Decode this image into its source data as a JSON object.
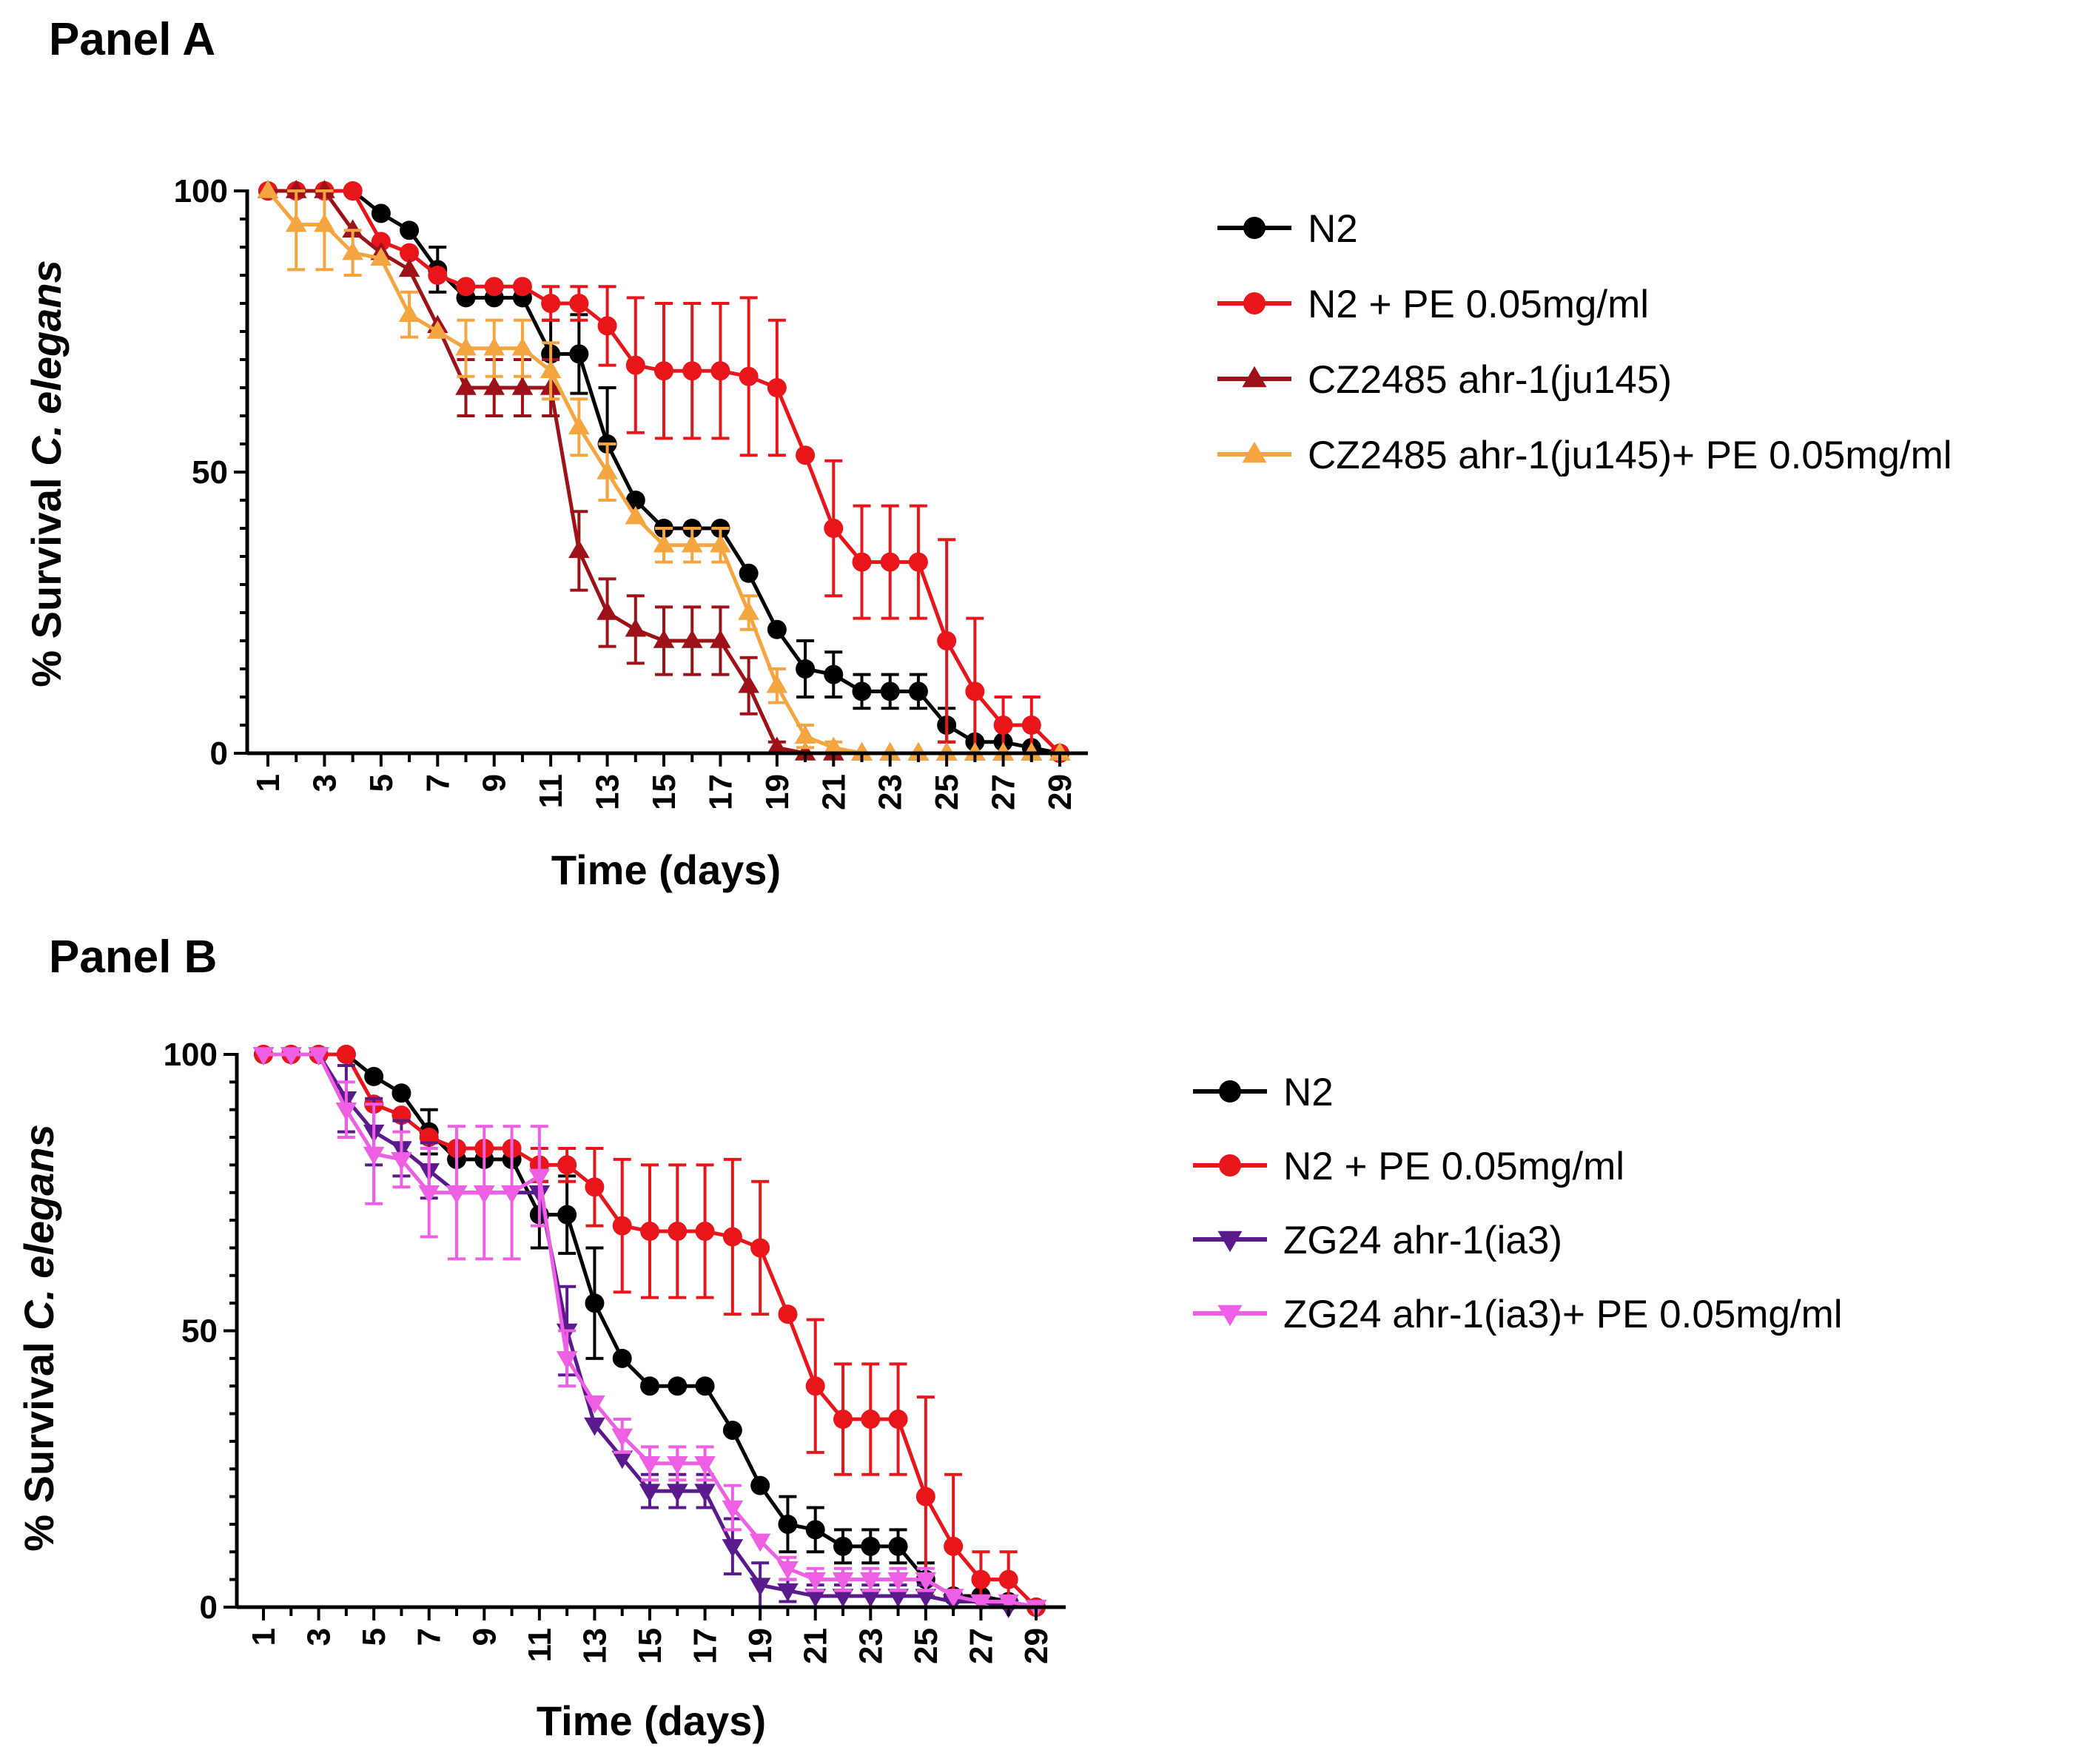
{
  "chart_data": [
    {
      "type": "line",
      "panel_title": "Panel A",
      "xlabel": "Time (days)",
      "ylabel_prefix": "% Survival ",
      "ylabel_genus": "C.",
      "ylabel_species": "elegans",
      "xlim": [
        0,
        29.5
      ],
      "ylim": [
        0,
        100
      ],
      "xticks": [
        1,
        3,
        5,
        7,
        9,
        11,
        13,
        15,
        17,
        19,
        21,
        23,
        25,
        27,
        29
      ],
      "yticks": [
        0,
        50,
        100
      ],
      "legend_position": "right",
      "series": [
        {
          "name": "N2",
          "color": "#000000",
          "marker": "circle",
          "x": [
            1,
            2,
            3,
            4,
            5,
            6,
            7,
            8,
            9,
            10,
            11,
            12,
            13,
            14,
            15,
            16,
            17,
            18,
            19,
            20,
            21,
            22,
            23,
            24,
            25,
            26,
            27,
            28,
            29
          ],
          "values": [
            100,
            100,
            100,
            100,
            96,
            93,
            86,
            81,
            81,
            81,
            71,
            71,
            55,
            45,
            40,
            40,
            40,
            32,
            22,
            15,
            14,
            11,
            11,
            11,
            5,
            2,
            2,
            1,
            0
          ],
          "errors": [
            0,
            0,
            0,
            0,
            0,
            0,
            4,
            0,
            0,
            0,
            6,
            7,
            10,
            0,
            0,
            0,
            0,
            0,
            0,
            5,
            4,
            3,
            3,
            3,
            3,
            0,
            0,
            0,
            0
          ]
        },
        {
          "name": "N2 + PE 0.05mg/ml",
          "color": "#e8161b",
          "marker": "circle",
          "x": [
            1,
            2,
            3,
            4,
            5,
            6,
            7,
            8,
            9,
            10,
            11,
            12,
            13,
            14,
            15,
            16,
            17,
            18,
            19,
            20,
            21,
            22,
            23,
            24,
            25,
            26,
            27,
            28,
            29
          ],
          "values": [
            100,
            100,
            100,
            100,
            91,
            89,
            85,
            83,
            83,
            83,
            80,
            80,
            76,
            69,
            68,
            68,
            68,
            67,
            65,
            53,
            40,
            34,
            34,
            34,
            20,
            11,
            5,
            5,
            0
          ],
          "errors": [
            0,
            0,
            0,
            0,
            0,
            0,
            0,
            0,
            0,
            0,
            3,
            3,
            7,
            12,
            12,
            12,
            12,
            14,
            12,
            0,
            12,
            10,
            10,
            10,
            18,
            13,
            5,
            5,
            0
          ]
        },
        {
          "name": "CZ2485 ahr-1(ju145)",
          "color": "#9c1218",
          "marker": "triangle-up",
          "x": [
            1,
            2,
            3,
            4,
            5,
            6,
            7,
            8,
            9,
            10,
            11,
            12,
            13,
            14,
            15,
            16,
            17,
            18,
            19,
            20,
            21,
            22,
            23,
            24,
            25,
            26,
            27,
            28,
            29
          ],
          "values": [
            100,
            100,
            100,
            93,
            89,
            86,
            76,
            65,
            65,
            65,
            65,
            36,
            25,
            22,
            20,
            20,
            20,
            12,
            1,
            0,
            0,
            0,
            0,
            0,
            0,
            0,
            0,
            0,
            0
          ],
          "errors": [
            0,
            0,
            0,
            0,
            0,
            0,
            0,
            5,
            5,
            5,
            5,
            7,
            6,
            6,
            6,
            6,
            6,
            5,
            1,
            0,
            0,
            0,
            0,
            0,
            0,
            0,
            0,
            0,
            0
          ]
        },
        {
          "name": "CZ2485 ahr-1(ju145)+ PE 0.05mg/ml",
          "color": "#f5a540",
          "marker": "triangle-up",
          "x": [
            1,
            2,
            3,
            4,
            5,
            6,
            7,
            8,
            9,
            10,
            11,
            12,
            13,
            14,
            15,
            16,
            17,
            18,
            19,
            20,
            21,
            22,
            23,
            24,
            25,
            26,
            27,
            28,
            29
          ],
          "values": [
            100,
            94,
            94,
            89,
            88,
            78,
            75,
            72,
            72,
            72,
            68,
            58,
            50,
            42,
            37,
            37,
            37,
            25,
            12,
            3,
            1,
            0,
            0,
            0,
            0,
            0,
            0,
            0,
            0
          ],
          "errors": [
            0,
            8,
            8,
            4,
            0,
            4,
            0,
            5,
            5,
            5,
            5,
            5,
            5,
            0,
            3,
            3,
            3,
            3,
            3,
            2,
            1,
            0,
            0,
            0,
            0,
            0,
            0,
            0,
            0
          ]
        }
      ]
    },
    {
      "type": "line",
      "panel_title": "Panel B",
      "xlabel": "Time (days)",
      "ylabel_prefix": "% Survival ",
      "ylabel_genus": "C.",
      "ylabel_species": "elegans",
      "xlim": [
        0,
        29.5
      ],
      "ylim": [
        0,
        100
      ],
      "xticks": [
        1,
        3,
        5,
        7,
        9,
        11,
        13,
        15,
        17,
        19,
        21,
        23,
        25,
        27,
        29
      ],
      "yticks": [
        0,
        50,
        100
      ],
      "legend_position": "right",
      "series": [
        {
          "name": "N2",
          "color": "#000000",
          "marker": "circle",
          "x": [
            1,
            2,
            3,
            4,
            5,
            6,
            7,
            8,
            9,
            10,
            11,
            12,
            13,
            14,
            15,
            16,
            17,
            18,
            19,
            20,
            21,
            22,
            23,
            24,
            25,
            26,
            27,
            28,
            29
          ],
          "values": [
            100,
            100,
            100,
            100,
            96,
            93,
            86,
            81,
            81,
            81,
            71,
            71,
            55,
            45,
            40,
            40,
            40,
            32,
            22,
            15,
            14,
            11,
            11,
            11,
            5,
            2,
            2,
            1,
            0
          ],
          "errors": [
            0,
            0,
            0,
            0,
            0,
            0,
            4,
            0,
            0,
            0,
            6,
            7,
            10,
            0,
            0,
            0,
            0,
            0,
            0,
            5,
            4,
            3,
            3,
            3,
            3,
            0,
            0,
            0,
            0
          ]
        },
        {
          "name": "N2 + PE 0.05mg/ml",
          "color": "#e8161b",
          "marker": "circle",
          "x": [
            1,
            2,
            3,
            4,
            5,
            6,
            7,
            8,
            9,
            10,
            11,
            12,
            13,
            14,
            15,
            16,
            17,
            18,
            19,
            20,
            21,
            22,
            23,
            24,
            25,
            26,
            27,
            28,
            29
          ],
          "values": [
            100,
            100,
            100,
            100,
            91,
            89,
            85,
            83,
            83,
            83,
            80,
            80,
            76,
            69,
            68,
            68,
            68,
            67,
            65,
            53,
            40,
            34,
            34,
            34,
            20,
            11,
            5,
            5,
            0
          ],
          "errors": [
            0,
            0,
            0,
            0,
            0,
            0,
            0,
            0,
            0,
            0,
            3,
            3,
            7,
            12,
            12,
            12,
            12,
            14,
            12,
            0,
            12,
            10,
            10,
            10,
            18,
            13,
            5,
            5,
            0
          ]
        },
        {
          "name": "ZG24 ahr-1(ia3)",
          "color": "#5b1a8c",
          "marker": "triangle-down",
          "x": [
            1,
            2,
            3,
            4,
            5,
            6,
            7,
            8,
            9,
            10,
            11,
            12,
            13,
            14,
            15,
            16,
            17,
            18,
            19,
            20,
            21,
            22,
            23,
            24,
            25,
            26,
            27,
            28,
            29
          ],
          "values": [
            100,
            100,
            100,
            92,
            86,
            83,
            79,
            75,
            75,
            75,
            75,
            50,
            33,
            27,
            21,
            21,
            21,
            11,
            4,
            3,
            2,
            2,
            2,
            2,
            2,
            1,
            1,
            0,
            0
          ],
          "errors": [
            0,
            0,
            0,
            6,
            6,
            5,
            5,
            0,
            0,
            0,
            0,
            8,
            0,
            0,
            3,
            3,
            3,
            5,
            4,
            2,
            2,
            2,
            2,
            2,
            2,
            1,
            1,
            0,
            0
          ]
        },
        {
          "name": "ZG24 ahr-1(ia3)+ PE 0.05mg/ml",
          "color": "#ee5fe3",
          "marker": "triangle-down",
          "x": [
            1,
            2,
            3,
            4,
            5,
            6,
            7,
            8,
            9,
            10,
            11,
            12,
            13,
            14,
            15,
            16,
            17,
            18,
            19,
            20,
            21,
            22,
            23,
            24,
            25,
            26,
            27,
            28,
            29
          ],
          "values": [
            100,
            100,
            100,
            90,
            82,
            81,
            75,
            75,
            75,
            75,
            78,
            45,
            37,
            31,
            26,
            26,
            26,
            18,
            12,
            7,
            5,
            5,
            5,
            5,
            5,
            2,
            1,
            1,
            0
          ],
          "errors": [
            0,
            0,
            0,
            5,
            9,
            5,
            8,
            12,
            12,
            12,
            9,
            5,
            0,
            3,
            3,
            3,
            3,
            4,
            0,
            2,
            2,
            2,
            2,
            2,
            2,
            0,
            0,
            0,
            0
          ]
        }
      ]
    }
  ]
}
